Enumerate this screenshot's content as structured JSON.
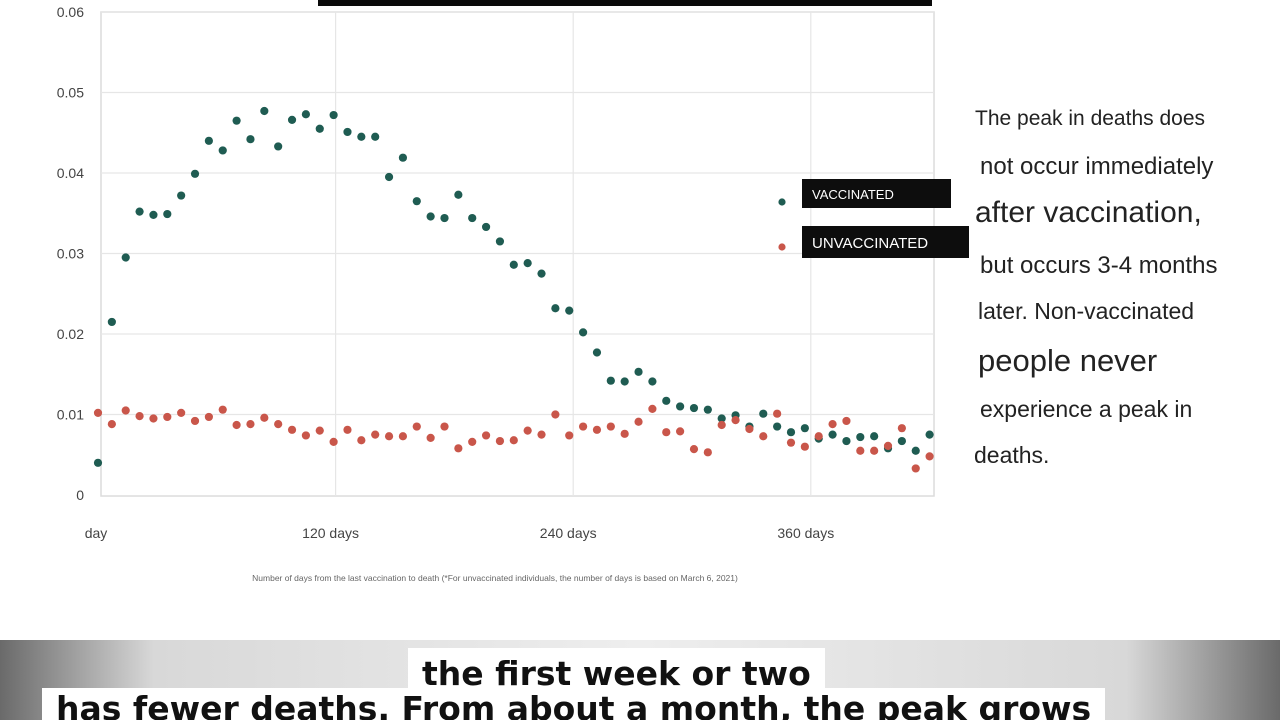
{
  "chart_data": {
    "type": "scatter",
    "xlabel": "Number of days from the last vaccination to death (*For unvaccinated individuals, the number of days is based on March 6, 2021)",
    "ylabel": "",
    "xlim": [
      0,
      420
    ],
    "ylim": [
      0,
      0.06
    ],
    "x_ticks": [
      {
        "value": 0,
        "label": "day"
      },
      {
        "value": 120,
        "label": "120 days"
      },
      {
        "value": 240,
        "label": "240 days"
      },
      {
        "value": 360,
        "label": "360 days"
      }
    ],
    "y_ticks": [
      {
        "value": 0,
        "label": "0"
      },
      {
        "value": 0.01,
        "label": "0.01"
      },
      {
        "value": 0.02,
        "label": "0.02"
      },
      {
        "value": 0.03,
        "label": "0.03"
      },
      {
        "value": 0.04,
        "label": "0.04"
      },
      {
        "value": 0.05,
        "label": "0.05"
      },
      {
        "value": 0.06,
        "label": "0.06"
      }
    ],
    "grid": true,
    "legend": "right",
    "series": [
      {
        "name": "VACCINATED",
        "color": "#1f5c52",
        "points": [
          [
            0,
            0.004
          ],
          [
            7,
            0.0215
          ],
          [
            14,
            0.0295
          ],
          [
            21,
            0.0352
          ],
          [
            28,
            0.0348
          ],
          [
            35,
            0.0349
          ],
          [
            42,
            0.0372
          ],
          [
            49,
            0.0399
          ],
          [
            56,
            0.044
          ],
          [
            63,
            0.0428
          ],
          [
            70,
            0.0465
          ],
          [
            77,
            0.0442
          ],
          [
            84,
            0.0477
          ],
          [
            91,
            0.0433
          ],
          [
            98,
            0.0466
          ],
          [
            105,
            0.0473
          ],
          [
            112,
            0.0455
          ],
          [
            119,
            0.0472
          ],
          [
            126,
            0.0451
          ],
          [
            133,
            0.0445
          ],
          [
            140,
            0.0445
          ],
          [
            147,
            0.0395
          ],
          [
            154,
            0.0419
          ],
          [
            161,
            0.0365
          ],
          [
            168,
            0.0346
          ],
          [
            175,
            0.0344
          ],
          [
            182,
            0.0373
          ],
          [
            189,
            0.0344
          ],
          [
            196,
            0.0333
          ],
          [
            203,
            0.0315
          ],
          [
            210,
            0.0286
          ],
          [
            217,
            0.0288
          ],
          [
            224,
            0.0275
          ],
          [
            231,
            0.0232
          ],
          [
            238,
            0.0229
          ],
          [
            245,
            0.0202
          ],
          [
            252,
            0.0177
          ],
          [
            259,
            0.0142
          ],
          [
            266,
            0.0141
          ],
          [
            273,
            0.0153
          ],
          [
            280,
            0.0141
          ],
          [
            287,
            0.0117
          ],
          [
            294,
            0.011
          ],
          [
            301,
            0.0108
          ],
          [
            308,
            0.0106
          ],
          [
            315,
            0.0095
          ],
          [
            322,
            0.0099
          ],
          [
            329,
            0.0085
          ],
          [
            336,
            0.0101
          ],
          [
            343,
            0.0085
          ],
          [
            350,
            0.0078
          ],
          [
            357,
            0.0083
          ],
          [
            364,
            0.007
          ],
          [
            371,
            0.0075
          ],
          [
            378,
            0.0067
          ],
          [
            385,
            0.0072
          ],
          [
            392,
            0.0073
          ],
          [
            399,
            0.0058
          ],
          [
            406,
            0.0067
          ],
          [
            413,
            0.0055
          ],
          [
            420,
            0.0075
          ]
        ]
      },
      {
        "name": "UNVACCINATED",
        "color": "#c9564a",
        "points": [
          [
            0,
            0.0102
          ],
          [
            7,
            0.0088
          ],
          [
            14,
            0.0105
          ],
          [
            21,
            0.0098
          ],
          [
            28,
            0.0095
          ],
          [
            35,
            0.0097
          ],
          [
            42,
            0.0102
          ],
          [
            49,
            0.0092
          ],
          [
            56,
            0.0097
          ],
          [
            63,
            0.0106
          ],
          [
            70,
            0.0087
          ],
          [
            77,
            0.0088
          ],
          [
            84,
            0.0096
          ],
          [
            91,
            0.0088
          ],
          [
            98,
            0.0081
          ],
          [
            105,
            0.0074
          ],
          [
            112,
            0.008
          ],
          [
            119,
            0.0066
          ],
          [
            126,
            0.0081
          ],
          [
            133,
            0.0068
          ],
          [
            140,
            0.0075
          ],
          [
            147,
            0.0073
          ],
          [
            154,
            0.0073
          ],
          [
            161,
            0.0085
          ],
          [
            168,
            0.0071
          ],
          [
            175,
            0.0085
          ],
          [
            182,
            0.0058
          ],
          [
            189,
            0.0066
          ],
          [
            196,
            0.0074
          ],
          [
            203,
            0.0067
          ],
          [
            210,
            0.0068
          ],
          [
            217,
            0.008
          ],
          [
            224,
            0.0075
          ],
          [
            231,
            0.01
          ],
          [
            238,
            0.0074
          ],
          [
            245,
            0.0085
          ],
          [
            252,
            0.0081
          ],
          [
            259,
            0.0085
          ],
          [
            266,
            0.0076
          ],
          [
            273,
            0.0091
          ],
          [
            280,
            0.0107
          ],
          [
            287,
            0.0078
          ],
          [
            294,
            0.0079
          ],
          [
            301,
            0.0057
          ],
          [
            308,
            0.0053
          ],
          [
            315,
            0.0087
          ],
          [
            322,
            0.0093
          ],
          [
            329,
            0.0082
          ],
          [
            336,
            0.0073
          ],
          [
            343,
            0.0101
          ],
          [
            350,
            0.0065
          ],
          [
            357,
            0.006
          ],
          [
            364,
            0.0073
          ],
          [
            371,
            0.0088
          ],
          [
            378,
            0.0092
          ],
          [
            385,
            0.0055
          ],
          [
            392,
            0.0055
          ],
          [
            399,
            0.0061
          ],
          [
            406,
            0.0083
          ],
          [
            413,
            0.0033
          ],
          [
            420,
            0.0048
          ]
        ]
      }
    ]
  },
  "note": {
    "lines": [
      "The peak in deaths does",
      "not occur immediately",
      "after vaccination,",
      "but occurs 3-4 months",
      "later. Non-vaccinated",
      "people never",
      "experience a peak in",
      "deaths."
    ]
  },
  "captions": {
    "line1": "the first week or two",
    "line2": "has fewer deaths. From about a month, the peak grows"
  }
}
